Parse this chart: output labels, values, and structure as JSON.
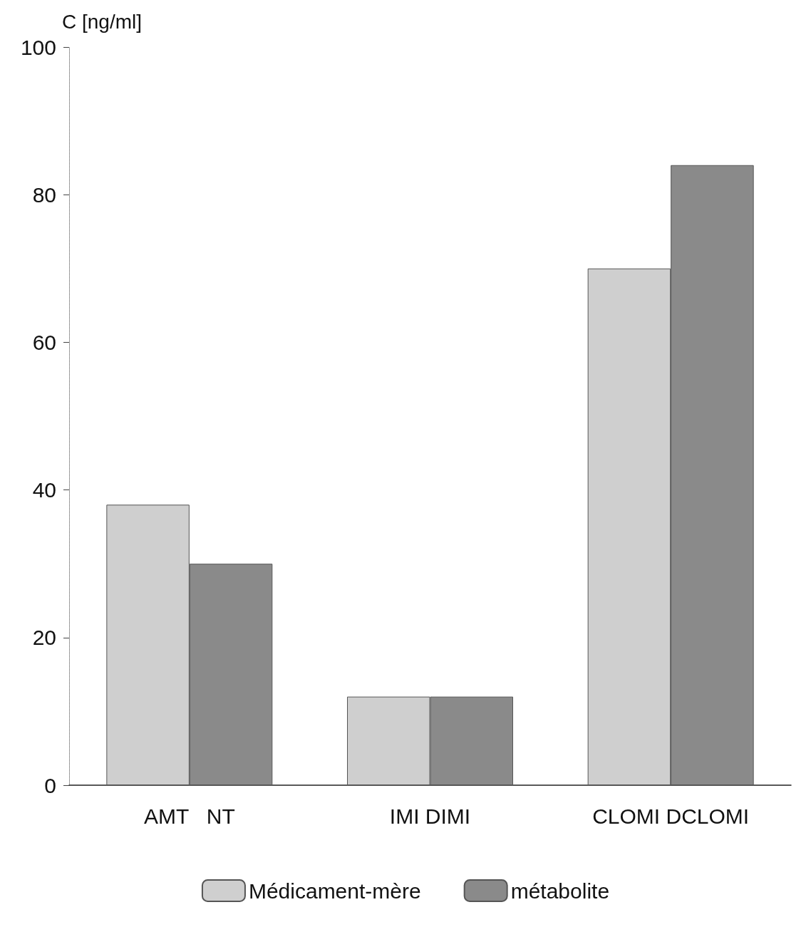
{
  "chart_data": {
    "type": "bar",
    "ylabel": "C [ng/ml]",
    "categories": [
      "AMT   NT",
      "IMI DIMI",
      "CLOMI DCLOMI"
    ],
    "series": [
      {
        "name": "Médicament-mère",
        "color": "#cfcfcf",
        "values": [
          38,
          12,
          70
        ]
      },
      {
        "name": "métabolite",
        "color": "#8a8a8a",
        "values": [
          30,
          12,
          84
        ]
      }
    ],
    "ylim": [
      0,
      100
    ],
    "yticks": [
      0,
      20,
      40,
      60,
      80,
      100
    ],
    "grid": false,
    "legend": "bottom"
  }
}
